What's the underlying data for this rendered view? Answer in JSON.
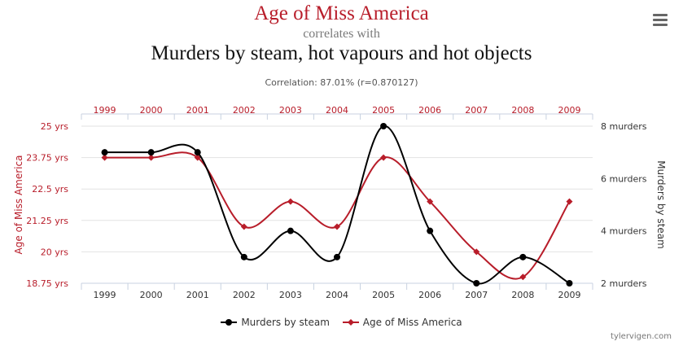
{
  "header": {
    "title": "Age of Miss America",
    "subtitle": "correlates with",
    "title2": "Murders by steam, hot vapours and hot objects",
    "correlation": "Correlation: 87.01% (r=0.870127)"
  },
  "credit": "tylervigen.com",
  "colors": {
    "red": "#b81d2a",
    "black": "#000000",
    "grid": "#e0e0e0"
  },
  "chart_data": {
    "type": "line",
    "x": [
      "1999",
      "2000",
      "2001",
      "2002",
      "2003",
      "2004",
      "2005",
      "2006",
      "2007",
      "2008",
      "2009"
    ],
    "series": [
      {
        "name": "Murders by steam",
        "color": "#000000",
        "marker": "circle",
        "axis": "right",
        "values": [
          7,
          7,
          7,
          3,
          4,
          3,
          8,
          4,
          2,
          3,
          2
        ]
      },
      {
        "name": "Age of Miss America",
        "color": "#b81d2a",
        "marker": "diamond",
        "axis": "left",
        "values": [
          23.75,
          23.75,
          23.75,
          21.0,
          22.0,
          21.0,
          23.75,
          22.0,
          20.0,
          19.0,
          22.0
        ]
      }
    ],
    "y_left": {
      "label": "Age of Miss America",
      "ticks": [
        "25 yrs",
        "23.75 yrs",
        "22.5 yrs",
        "21.25 yrs",
        "20 yrs",
        "18.75 yrs"
      ],
      "range": [
        18.75,
        25
      ]
    },
    "y_right": {
      "label": "Murders by steam",
      "ticks": [
        "8 murders",
        "6 murders",
        "4 murders",
        "2 murders"
      ],
      "range": [
        2,
        8
      ]
    },
    "legend_position": "bottom-center"
  }
}
